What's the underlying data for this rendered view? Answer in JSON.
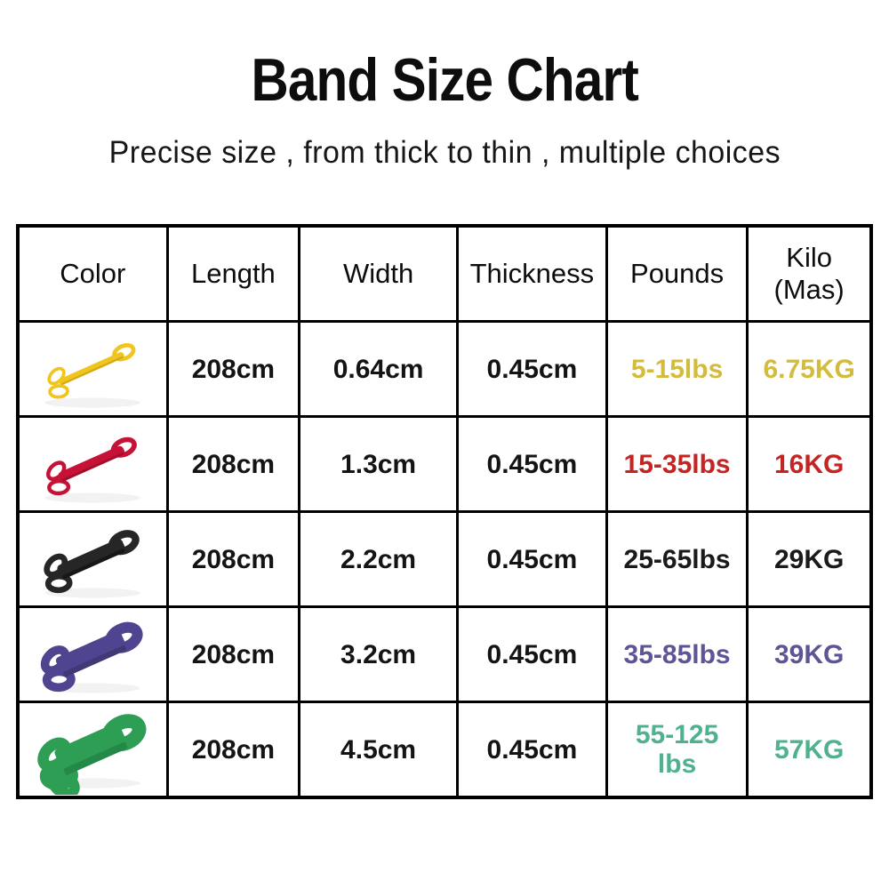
{
  "page": {
    "title": "Band Size Chart",
    "subtitle": "Precise size , from thick to thin , multiple choices",
    "background_color": "#ffffff",
    "title_color": "#0d0d0d"
  },
  "table": {
    "headers": [
      "Color",
      "Length",
      "Width",
      "Thickness",
      "Pounds",
      "Kilo\n(Mas)"
    ],
    "rows": [
      {
        "band": {
          "name": "yellow-band",
          "color": "#EFC51E",
          "edge": "#C4970F",
          "weight": 8
        },
        "length": "208cm",
        "width": "0.64cm",
        "thickness": "0.45cm",
        "pounds": "5-15lbs",
        "kilo": "6.75KG",
        "value_color": "#D3BC3D"
      },
      {
        "band": {
          "name": "red-band",
          "color": "#C51236",
          "edge": "#8E0C26",
          "weight": 12
        },
        "length": "208cm",
        "width": "1.3cm",
        "thickness": "0.45cm",
        "pounds": "15-35lbs",
        "kilo": "16KG",
        "value_color": "#C42523"
      },
      {
        "band": {
          "name": "black-band",
          "color": "#262626",
          "edge": "#0d0d0d",
          "weight": 18
        },
        "length": "208cm",
        "width": "2.2cm",
        "thickness": "0.45cm",
        "pounds": "25-65lbs",
        "kilo": "29KG",
        "value_color": "#1A1A1A"
      },
      {
        "band": {
          "name": "purple-band",
          "color": "#4F4490",
          "edge": "#383066",
          "weight": 26
        },
        "length": "208cm",
        "width": "3.2cm",
        "thickness": "0.45cm",
        "pounds": "35-85lbs",
        "kilo": "39KG",
        "value_color": "#5C5596"
      },
      {
        "band": {
          "name": "green-band",
          "color": "#2E9E55",
          "edge": "#1E7C40",
          "weight": 34
        },
        "length": "208cm",
        "width": "4.5cm",
        "thickness": "0.45cm",
        "pounds": "55-125\nlbs",
        "kilo": "57KG",
        "value_color": "#4FB18D"
      }
    ]
  },
  "chart_data": {
    "type": "table",
    "title": "Band Size Chart",
    "subtitle": "Precise size , from thick to thin , multiple choices",
    "columns": [
      "Color",
      "Length",
      "Width",
      "Thickness",
      "Pounds",
      "Kilo (Mas)"
    ],
    "rows": [
      [
        "yellow band",
        "208cm",
        "0.64cm",
        "0.45cm",
        "5-15lbs",
        "6.75KG"
      ],
      [
        "red band",
        "208cm",
        "1.3cm",
        "0.45cm",
        "15-35lbs",
        "16KG"
      ],
      [
        "black band",
        "208cm",
        "2.2cm",
        "0.45cm",
        "25-65lbs",
        "29KG"
      ],
      [
        "purple band",
        "208cm",
        "3.2cm",
        "0.45cm",
        "35-85lbs",
        "39KG"
      ],
      [
        "green band",
        "208cm",
        "4.5cm",
        "0.45cm",
        "55-125 lbs",
        "57KG"
      ]
    ]
  }
}
